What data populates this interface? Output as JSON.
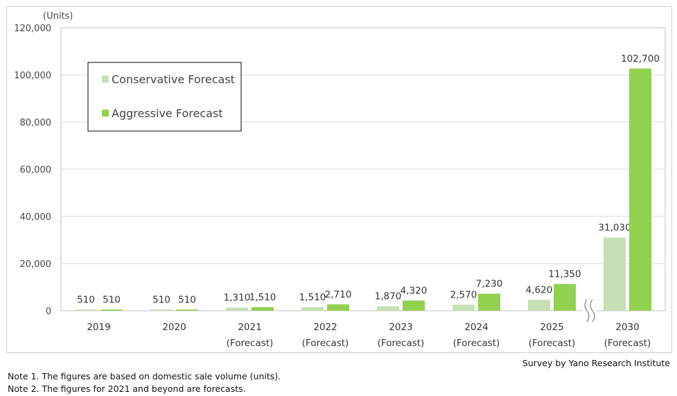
{
  "chart_data": {
    "type": "bar",
    "unit_label": "(Units)",
    "categories": [
      {
        "line1": "2019",
        "line2": ""
      },
      {
        "line1": "2020",
        "line2": ""
      },
      {
        "line1": "2021",
        "line2": "(Forecast)"
      },
      {
        "line1": "2022",
        "line2": "(Forecast)"
      },
      {
        "line1": "2023",
        "line2": "(Forecast)"
      },
      {
        "line1": "2024",
        "line2": "(Forecast)"
      },
      {
        "line1": "2025",
        "line2": "(Forecast)"
      },
      {
        "line1": "2030",
        "line2": "(Forecast)"
      }
    ],
    "series": [
      {
        "name": "Conservative Forecast",
        "color": "#c5e0b4",
        "values": [
          510,
          510,
          1310,
          1510,
          1870,
          2570,
          4620,
          31030
        ],
        "labels": [
          "510",
          "510",
          "1,310",
          "1,510",
          "1,870",
          "2,570",
          "4,620",
          "31,030"
        ]
      },
      {
        "name": "Aggressive Forecast",
        "color": "#92d050",
        "values": [
          510,
          510,
          1510,
          2710,
          4320,
          7230,
          11350,
          102700
        ],
        "labels": [
          "510",
          "510",
          "1,510",
          "2,710",
          "4,320",
          "7,230",
          "11,350",
          "102,700"
        ]
      }
    ],
    "ylim": [
      0,
      120000
    ],
    "yticks": [
      0,
      20000,
      40000,
      60000,
      80000,
      100000,
      120000
    ],
    "ytick_labels": [
      "0",
      "20,000",
      "40,000",
      "60,000",
      "80,000",
      "100,000",
      "120,000"
    ],
    "axis_break_between": [
      "2025",
      "2030"
    ],
    "legend_position": "top-left",
    "grid": "horizontal"
  },
  "source": "Survey by Yano Research Institute",
  "notes": [
    "Note 1.  The figures are based on domestic sale volume (units).",
    "Note 2.  The figures for 2021 and beyond are forecasts."
  ]
}
